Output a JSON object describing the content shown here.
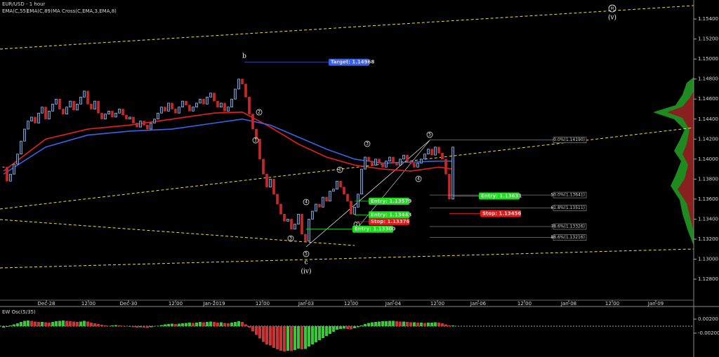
{
  "chart_data": {
    "type": "candlestick",
    "title": "EUR/USD - 1 hour",
    "indicator_labels": [
      {
        "text": "EMA(C,55)",
        "color": "#e03030"
      },
      {
        "text": "EMA(C,89)",
        "color": "#4a78ff"
      },
      {
        "text": "MA Cross(C,EMA,3,EMA,8)",
        "color": "#dddddd"
      }
    ],
    "up_color": "#a8cbff",
    "down_color": "#c62828",
    "xlim": [
      -1,
      196.6
    ],
    "xticks": [
      {
        "value": 12.2,
        "label": "Dec-28"
      },
      {
        "value": 24.2,
        "label": "12:00"
      },
      {
        "value": 35.6,
        "label": "Dec-30"
      },
      {
        "value": 49,
        "label": "12:00"
      },
      {
        "value": 60,
        "label": "Jan-2019"
      },
      {
        "value": 73.8,
        "label": "12:00"
      },
      {
        "value": 86.2,
        "label": "Jan-03"
      },
      {
        "value": 99,
        "label": "12:00"
      },
      {
        "value": 111,
        "label": "Jan-04"
      },
      {
        "value": 123.6,
        "label": "12:00"
      },
      {
        "value": 135.2,
        "label": "Jan-06"
      },
      {
        "value": 148.4,
        "label": "12:00"
      },
      {
        "value": 161,
        "label": "Jan-08"
      },
      {
        "value": 173.4,
        "label": "12:00"
      },
      {
        "value": 185.8,
        "label": "Jan-09"
      }
    ],
    "ylim": [
      1.1259,
      1.1559
    ],
    "yticks": [
      {
        "value": 1.128,
        "label": "1.12800"
      },
      {
        "value": 1.13,
        "label": "1.13000"
      },
      {
        "value": 1.132,
        "label": "1.13200"
      },
      {
        "value": 1.134,
        "label": "1.13400"
      },
      {
        "value": 1.136,
        "label": "1.13600"
      },
      {
        "value": 1.138,
        "label": "1.13800"
      },
      {
        "value": 1.14,
        "label": "1.14000"
      },
      {
        "value": 1.142,
        "label": "1.14200"
      },
      {
        "value": 1.144,
        "label": "1.14400"
      },
      {
        "value": 1.146,
        "label": "1.14600"
      },
      {
        "value": 1.148,
        "label": "1.14800"
      },
      {
        "value": 1.15,
        "label": "1.15000"
      },
      {
        "value": 1.152,
        "label": "1.15200"
      },
      {
        "value": 1.154,
        "label": "1.15400"
      }
    ],
    "close": [
      1.1392,
      1.1378,
      1.1385,
      1.1395,
      1.1405,
      1.1418,
      1.143,
      1.1438,
      1.1442,
      1.1436,
      1.1446,
      1.1452,
      1.144,
      1.1448,
      1.1455,
      1.146,
      1.145,
      1.1445,
      1.1452,
      1.1458,
      1.1449,
      1.1455,
      1.1462,
      1.1468,
      1.1455,
      1.145,
      1.1458,
      1.1446,
      1.144,
      1.1445,
      1.1448,
      1.1442,
      1.1446,
      1.145,
      1.1444,
      1.144,
      1.1442,
      1.1436,
      1.1432,
      1.1438,
      1.1434,
      1.143,
      1.1436,
      1.144,
      1.1446,
      1.1452,
      1.1448,
      1.1456,
      1.145,
      1.1446,
      1.1452,
      1.1458,
      1.1454,
      1.1448,
      1.1452,
      1.1456,
      1.146,
      1.1455,
      1.1462,
      1.1466,
      1.1458,
      1.1452,
      1.1456,
      1.1448,
      1.1452,
      1.146,
      1.147,
      1.148,
      1.1475,
      1.1462,
      1.1445,
      1.143,
      1.142,
      1.14,
      1.1385,
      1.1372,
      1.138,
      1.1365,
      1.1355,
      1.1345,
      1.1338,
      1.134,
      1.133,
      1.1335,
      1.1345,
      1.1325,
      1.1318,
      1.134,
      1.1348,
      1.1355,
      1.1352,
      1.1362,
      1.1358,
      1.1368,
      1.137,
      1.1378,
      1.1372,
      1.1365,
      1.1358,
      1.1345,
      1.1352,
      1.1365,
      1.139,
      1.1402,
      1.1398,
      1.1394,
      1.14,
      1.1396,
      1.1392,
      1.1398,
      1.1402,
      1.1396,
      1.1394,
      1.14,
      1.1404,
      1.1398,
      1.1396,
      1.1392,
      1.1396,
      1.14,
      1.1405,
      1.141,
      1.1404,
      1.1412,
      1.1406,
      1.14,
      1.1385,
      1.136,
      1.1412
    ],
    "ma_x": [
      0,
      12,
      24,
      36,
      48,
      60,
      68,
      76,
      84,
      92,
      100,
      108,
      116,
      124,
      128
    ],
    "series": [
      {
        "name": "EMA(C,55)",
        "color": "#e82020",
        "values": [
          1.1388,
          1.142,
          1.143,
          1.1434,
          1.144,
          1.1446,
          1.1447,
          1.1432,
          1.1415,
          1.1402,
          1.1394,
          1.139,
          1.1388,
          1.1392,
          1.139
        ]
      },
      {
        "name": "EMA(C,89)",
        "color": "#3a64e8",
        "values": [
          1.1385,
          1.1412,
          1.1424,
          1.1428,
          1.143,
          1.1436,
          1.144,
          1.1434,
          1.1422,
          1.141,
          1.14,
          1.1396,
          1.1397,
          1.1398,
          1.1398
        ]
      }
    ],
    "trade_levels": [
      {
        "label": "Target: 1.14968",
        "value": 1.14968,
        "color": "#3a5fe0"
      },
      {
        "label": "Entry: 1.13579",
        "value": 1.13579,
        "color": "#19e019"
      },
      {
        "label": "Entry: 1.13443",
        "value": 1.13443,
        "color": "#19e019"
      },
      {
        "label": "Stop: 1.13376",
        "value": 1.13376,
        "color": "#e01919"
      },
      {
        "label": "Entry: 1.13300",
        "value": 1.133,
        "color": "#19e019"
      },
      {
        "label": "Entry: 1.13631",
        "value": 1.13631,
        "color": "#19e019"
      },
      {
        "label": "Stop: 1.13456",
        "value": 1.13456,
        "color": "#e01919"
      }
    ],
    "fib_levels": [
      {
        "label": "0.0%(1.14190)",
        "value": 1.1419
      },
      {
        "label": "50.0%(1.13641)",
        "value": 1.13641
      },
      {
        "label": "61.8%(1.13511)",
        "value": 1.13511
      },
      {
        "label": "78.6%(1.13326)",
        "value": 1.13326
      },
      {
        "label": "88.6%(1.13216)",
        "value": 1.13216
      }
    ],
    "wave_labels": [
      "b",
      "c",
      "(iv)",
      "(v)",
      "iii",
      "1",
      "2",
      "3",
      "4",
      "5",
      "1",
      "2",
      "3",
      "4",
      "5"
    ],
    "oscillator": {
      "title": "EW Osc(5/35)",
      "up_color": "#33cc33",
      "down_color": "#cc3333",
      "ylim": [
        -0.0084,
        0.005
      ],
      "yticks": [
        {
          "value": 0.002,
          "label": "0.00200"
        },
        {
          "value": -0.002,
          "label": "-0.00200"
        }
      ],
      "values": [
        -0.0004,
        -0.0002,
        0.0002,
        0.0005,
        0.0008,
        0.0012,
        0.0015,
        0.0016,
        0.0015,
        0.0013,
        0.0012,
        0.0012,
        0.0011,
        0.001,
        0.0012,
        0.0014,
        0.0015,
        0.0016,
        0.0015,
        0.0014,
        0.0013,
        0.0012,
        0.0013,
        0.0015,
        0.0013,
        0.001,
        0.0008,
        0.0006,
        0.0004,
        0.0002,
        0.0001,
        0.0002,
        0.0003,
        0.0002,
        0.0001,
        -0.0001,
        -0.0002,
        -0.0003,
        -0.0004,
        -0.0003,
        -0.0004,
        -0.0005,
        -0.0003,
        -0.0001,
        0.0001,
        0.0003,
        0.0005,
        0.0006,
        0.0007,
        0.0006,
        0.0007,
        0.0008,
        0.0009,
        0.001,
        0.0009,
        0.001,
        0.0012,
        0.0011,
        0.0012,
        0.0013,
        0.0012,
        0.001,
        0.0011,
        0.0009,
        0.0008,
        0.001,
        0.0012,
        0.0014,
        0.0012,
        0.0005,
        -0.0004,
        -0.0015,
        -0.0025,
        -0.0035,
        -0.0045,
        -0.0052,
        -0.0055,
        -0.0062,
        -0.0066,
        -0.007,
        -0.0072,
        -0.007,
        -0.0071,
        -0.0068,
        -0.0064,
        -0.0066,
        -0.0065,
        -0.0058,
        -0.0052,
        -0.0046,
        -0.004,
        -0.0034,
        -0.0028,
        -0.0022,
        -0.0016,
        -0.001,
        -0.0008,
        -0.0007,
        -0.0008,
        -0.0009,
        -0.0006,
        -0.0003,
        0.0002,
        0.0006,
        0.0009,
        0.0011,
        0.0012,
        0.0013,
        0.0014,
        0.0014,
        0.0015,
        0.0015,
        0.0014,
        0.0013,
        0.0013,
        0.0012,
        0.0011,
        0.0011,
        0.001,
        0.001,
        0.0009,
        0.001,
        0.001,
        0.0011,
        0.001,
        0.0008,
        0.0005,
        0.0002,
        0.0002
      ]
    }
  }
}
